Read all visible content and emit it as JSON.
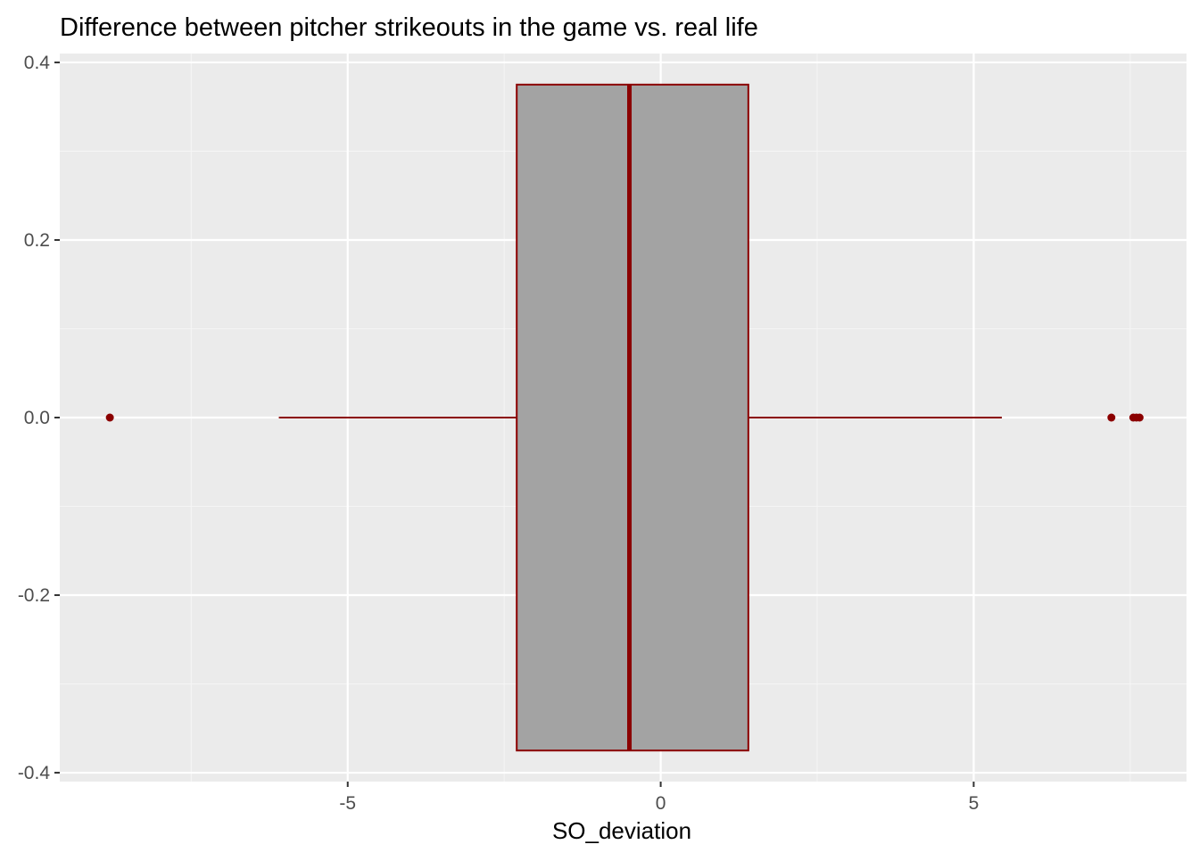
{
  "chart_data": {
    "type": "boxplot",
    "title": "Difference between pitcher strikeouts in the game vs. real life",
    "xlabel": "SO_deviation",
    "ylabel": "",
    "x_ticks": [
      -5,
      0,
      5
    ],
    "x_tick_labels": [
      "-5",
      "0",
      "5"
    ],
    "y_ticks": [
      -0.4,
      -0.2,
      0.0,
      0.2,
      0.4
    ],
    "y_tick_labels": [
      "-0.4",
      "-0.2",
      "0.0",
      "0.2",
      "0.4"
    ],
    "xlim": [
      -9.6,
      8.4
    ],
    "ylim": [
      -0.41,
      0.41
    ],
    "grid": true,
    "legend": "none",
    "box": {
      "y_center": 0.0,
      "y_range": [
        -0.375,
        0.375
      ],
      "whisker_low": -6.1,
      "q1": -2.3,
      "median": -0.5,
      "q3": 1.4,
      "whisker_high": 5.45
    },
    "outliers": [
      -8.8,
      7.2,
      7.55,
      7.6,
      7.65
    ],
    "colors": {
      "panel_background": "#EBEBEB",
      "grid_major": "#FFFFFF",
      "grid_minor": "#F5F5F5",
      "box_fill": "#A3A3A3",
      "box_outline": "#8B0000",
      "outlier": "#8B0000",
      "axis_text": "#4D4D4D",
      "title_text": "#000000"
    }
  }
}
